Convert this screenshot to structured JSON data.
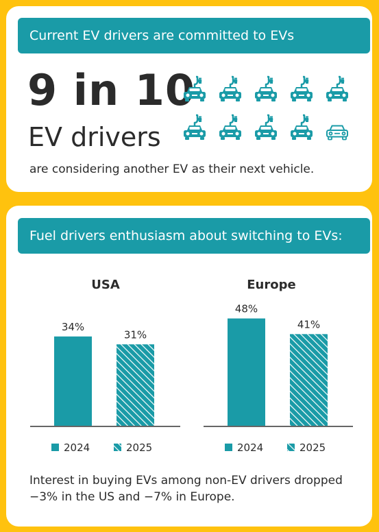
{
  "top_card": {
    "banner": "Current EV drivers are committed to EVs",
    "stat": "9 in 10",
    "stat_subject": "EV drivers",
    "statement": "are considering another EV as their next vehicle.",
    "icons": {
      "filled_count": 9,
      "total": 10,
      "filled_icon": "ev-charging-car-icon",
      "outline_icon": "car-outline-icon"
    }
  },
  "bottom_card": {
    "banner": "Fuel drivers enthusiasm about switching to EVs:",
    "footnote": "Interest in buying EVs among non-EV drivers dropped −3% in the US and −7% in Europe."
  },
  "colors": {
    "background": "#FFC20E",
    "card": "#FFFFFF",
    "accent": "#1A9BA7",
    "text": "#2B2B2B"
  },
  "chart_data": [
    {
      "type": "bar",
      "title": "USA",
      "categories": [
        "2024",
        "2025"
      ],
      "values": [
        34,
        31
      ],
      "labels": [
        "34%",
        "31%"
      ],
      "ylim": [
        0,
        50
      ],
      "legend": [
        "2024",
        "2025"
      ],
      "legend_placement": "bottom",
      "bar_fill": [
        "solid",
        "hatched"
      ],
      "grid": false
    },
    {
      "type": "bar",
      "title": "Europe",
      "categories": [
        "2024",
        "2025"
      ],
      "values": [
        48,
        41
      ],
      "labels": [
        "48%",
        "41%"
      ],
      "ylim": [
        0,
        50
      ],
      "legend": [
        "2024",
        "2025"
      ],
      "legend_placement": "bottom",
      "bar_fill": [
        "solid",
        "hatched"
      ],
      "grid": false
    }
  ]
}
